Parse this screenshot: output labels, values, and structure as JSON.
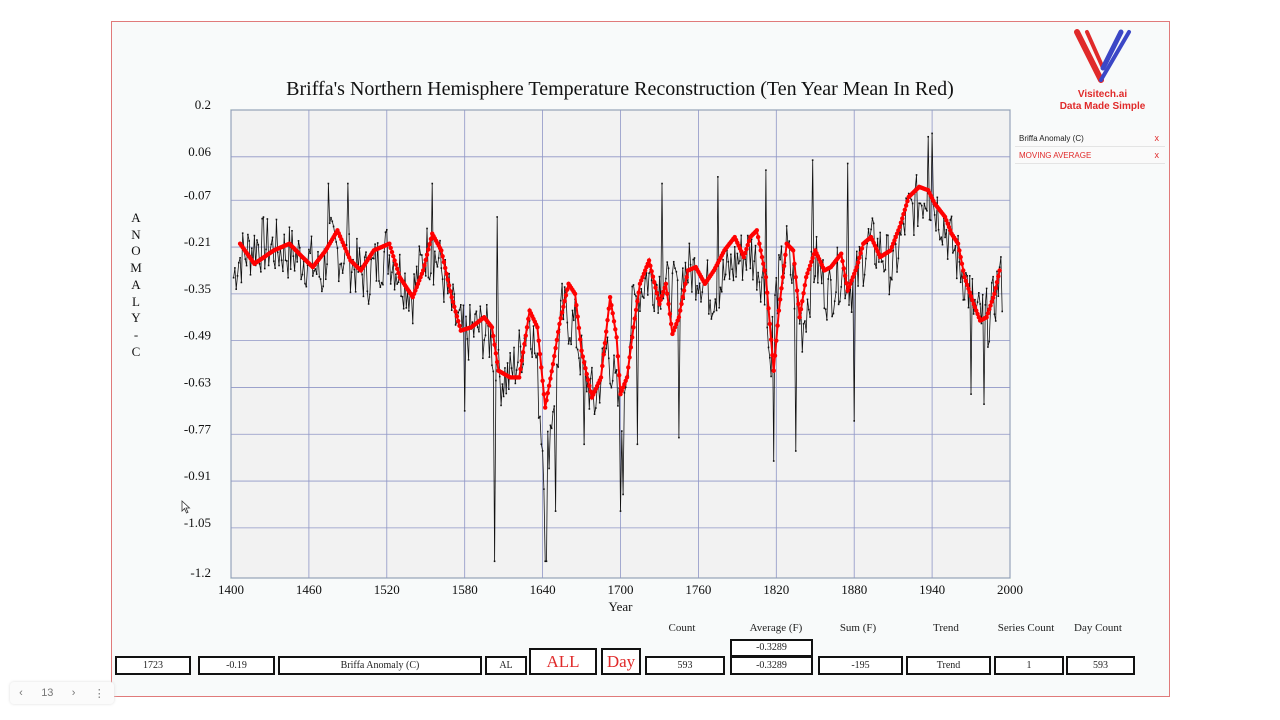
{
  "chart_data": {
    "type": "line",
    "title": "Briffa's Northern Hemisphere Temperature Reconstruction (Ten Year Mean In Red)",
    "xlabel": "Year",
    "ylabel": "ANOMALY - C",
    "xlim": [
      1400,
      2000
    ],
    "ylim": [
      -1.2,
      0.2
    ],
    "x_ticks": [
      "1400",
      "1460",
      "1520",
      "1580",
      "1640",
      "1700",
      "1760",
      "1820",
      "1880",
      "1940",
      "2000"
    ],
    "y_ticks": [
      "0.2",
      "0.06",
      "-0.07",
      "-0.21",
      "-0.35",
      "-0.49",
      "-0.63",
      "-0.77",
      "-0.91",
      "-1.05",
      "-1.2"
    ],
    "grid": true,
    "legend_position": "right",
    "series": [
      {
        "name": "Briffa Anomaly (C)",
        "color": "#111111",
        "anchors": [
          [
            1402,
            -0.3
          ],
          [
            1405,
            -0.25
          ],
          [
            1420,
            -0.2
          ],
          [
            1440,
            -0.22
          ],
          [
            1460,
            -0.25
          ],
          [
            1470,
            -0.3
          ],
          [
            1475,
            -0.2
          ],
          [
            1490,
            -0.25
          ],
          [
            1505,
            -0.3
          ],
          [
            1520,
            -0.22
          ],
          [
            1540,
            -0.35
          ],
          [
            1550,
            -0.22
          ],
          [
            1560,
            -0.25
          ],
          [
            1565,
            -0.32
          ],
          [
            1572,
            -0.42
          ],
          [
            1580,
            -0.48
          ],
          [
            1590,
            -0.45
          ],
          [
            1600,
            -0.48
          ],
          [
            1605,
            -0.6
          ],
          [
            1615,
            -0.6
          ],
          [
            1625,
            -0.5
          ],
          [
            1630,
            -0.4
          ],
          [
            1635,
            -0.55
          ],
          [
            1642,
            -0.9
          ],
          [
            1650,
            -0.6
          ],
          [
            1655,
            -0.4
          ],
          [
            1665,
            -0.45
          ],
          [
            1670,
            -0.55
          ],
          [
            1680,
            -0.68
          ],
          [
            1690,
            -0.5
          ],
          [
            1700,
            -0.72
          ],
          [
            1710,
            -0.38
          ],
          [
            1720,
            -0.3
          ],
          [
            1730,
            -0.32
          ],
          [
            1740,
            -0.35
          ],
          [
            1750,
            -0.28
          ],
          [
            1760,
            -0.28
          ],
          [
            1770,
            -0.35
          ],
          [
            1780,
            -0.3
          ],
          [
            1790,
            -0.25
          ],
          [
            1800,
            -0.22
          ],
          [
            1810,
            -0.3
          ],
          [
            1815,
            -0.55
          ],
          [
            1820,
            -0.35
          ],
          [
            1828,
            -0.22
          ],
          [
            1840,
            -0.45
          ],
          [
            1850,
            -0.25
          ],
          [
            1860,
            -0.35
          ],
          [
            1870,
            -0.28
          ],
          [
            1880,
            -0.33
          ],
          [
            1890,
            -0.2
          ],
          [
            1900,
            -0.22
          ],
          [
            1910,
            -0.28
          ],
          [
            1920,
            -0.12
          ],
          [
            1935,
            -0.05
          ],
          [
            1945,
            -0.1
          ],
          [
            1955,
            -0.2
          ],
          [
            1965,
            -0.3
          ],
          [
            1975,
            -0.42
          ],
          [
            1985,
            -0.42
          ],
          [
            1992,
            -0.3
          ],
          [
            1994,
            -0.33
          ]
        ],
        "noise_amplitude": 0.09,
        "dips": [
          [
            1580,
            -0.7
          ],
          [
            1603,
            -1.15
          ],
          [
            1642,
            -1.15
          ],
          [
            1643,
            -1.15
          ],
          [
            1650,
            -1.0
          ],
          [
            1672,
            -0.8
          ],
          [
            1700,
            -1.0
          ],
          [
            1702,
            -0.95
          ],
          [
            1713,
            -0.8
          ],
          [
            1745,
            -0.78
          ],
          [
            1818,
            -0.85
          ],
          [
            1835,
            -0.82
          ],
          [
            1880,
            -0.73
          ],
          [
            1970,
            -0.65
          ],
          [
            1980,
            -0.68
          ]
        ],
        "peaks": [
          [
            1475,
            -0.02
          ],
          [
            1490,
            -0.02
          ],
          [
            1555,
            -0.02
          ],
          [
            1605,
            -0.12
          ],
          [
            1732,
            -0.02
          ],
          [
            1775,
            0.0
          ],
          [
            1812,
            0.02
          ],
          [
            1848,
            0.05
          ],
          [
            1875,
            0.04
          ],
          [
            1937,
            0.12
          ],
          [
            1940,
            0.13
          ]
        ]
      },
      {
        "name": "MOVING AVERAGE",
        "color": "#ff0000",
        "anchors": [
          [
            1407,
            -0.2
          ],
          [
            1418,
            -0.26
          ],
          [
            1433,
            -0.22
          ],
          [
            1445,
            -0.2
          ],
          [
            1455,
            -0.24
          ],
          [
            1463,
            -0.27
          ],
          [
            1473,
            -0.22
          ],
          [
            1482,
            -0.16
          ],
          [
            1492,
            -0.25
          ],
          [
            1500,
            -0.28
          ],
          [
            1510,
            -0.22
          ],
          [
            1522,
            -0.2
          ],
          [
            1530,
            -0.3
          ],
          [
            1540,
            -0.36
          ],
          [
            1548,
            -0.28
          ],
          [
            1555,
            -0.17
          ],
          [
            1562,
            -0.22
          ],
          [
            1570,
            -0.36
          ],
          [
            1577,
            -0.46
          ],
          [
            1585,
            -0.45
          ],
          [
            1595,
            -0.42
          ],
          [
            1601,
            -0.45
          ],
          [
            1606,
            -0.58
          ],
          [
            1615,
            -0.6
          ],
          [
            1622,
            -0.6
          ],
          [
            1630,
            -0.4
          ],
          [
            1636,
            -0.45
          ],
          [
            1642,
            -0.69
          ],
          [
            1648,
            -0.56
          ],
          [
            1653,
            -0.44
          ],
          [
            1660,
            -0.32
          ],
          [
            1665,
            -0.35
          ],
          [
            1670,
            -0.52
          ],
          [
            1678,
            -0.66
          ],
          [
            1685,
            -0.6
          ],
          [
            1692,
            -0.36
          ],
          [
            1697,
            -0.48
          ],
          [
            1700,
            -0.65
          ],
          [
            1705,
            -0.6
          ],
          [
            1710,
            -0.45
          ],
          [
            1715,
            -0.32
          ],
          [
            1722,
            -0.25
          ],
          [
            1730,
            -0.38
          ],
          [
            1735,
            -0.32
          ],
          [
            1740,
            -0.47
          ],
          [
            1745,
            -0.42
          ],
          [
            1752,
            -0.28
          ],
          [
            1758,
            -0.27
          ],
          [
            1765,
            -0.32
          ],
          [
            1772,
            -0.28
          ],
          [
            1780,
            -0.22
          ],
          [
            1788,
            -0.18
          ],
          [
            1795,
            -0.24
          ],
          [
            1800,
            -0.18
          ],
          [
            1805,
            -0.16
          ],
          [
            1812,
            -0.3
          ],
          [
            1818,
            -0.58
          ],
          [
            1822,
            -0.4
          ],
          [
            1828,
            -0.2
          ],
          [
            1833,
            -0.22
          ],
          [
            1838,
            -0.42
          ],
          [
            1843,
            -0.3
          ],
          [
            1850,
            -0.22
          ],
          [
            1857,
            -0.28
          ],
          [
            1862,
            -0.27
          ],
          [
            1870,
            -0.23
          ],
          [
            1875,
            -0.34
          ],
          [
            1882,
            -0.27
          ],
          [
            1887,
            -0.2
          ],
          [
            1893,
            -0.18
          ],
          [
            1900,
            -0.24
          ],
          [
            1908,
            -0.22
          ],
          [
            1915,
            -0.15
          ],
          [
            1922,
            -0.06
          ],
          [
            1930,
            -0.03
          ],
          [
            1937,
            -0.04
          ],
          [
            1942,
            -0.08
          ],
          [
            1950,
            -0.12
          ],
          [
            1955,
            -0.17
          ],
          [
            1960,
            -0.2
          ],
          [
            1965,
            -0.3
          ],
          [
            1972,
            -0.38
          ],
          [
            1977,
            -0.43
          ],
          [
            1982,
            -0.42
          ],
          [
            1988,
            -0.35
          ],
          [
            1992,
            -0.28
          ]
        ]
      }
    ]
  },
  "logo": {
    "text_line1": "Visitech.ai",
    "text_line2": "Data Made Simple"
  },
  "legend": {
    "items": [
      {
        "label": "Briffa Anomaly (C)",
        "remove": "x"
      },
      {
        "label": "MOVING AVERAGE",
        "remove": "x"
      }
    ]
  },
  "stats": {
    "headers": {
      "count": "Count",
      "average": "Average (F)",
      "sum": "Sum (F)",
      "trend": "Trend",
      "series_count": "Series Count",
      "day_count": "Day Count"
    },
    "cells": {
      "year": "1723",
      "value": "-0.19",
      "series_name": "Briffa Anomaly (C)",
      "al": "AL",
      "all": "ALL",
      "day": "Day",
      "count": "593",
      "average_top": "-0.3289",
      "average": "-0.3289",
      "sum": "-195",
      "trend": "Trend",
      "series_count": "1",
      "day_count": "593"
    }
  },
  "pager": {
    "prev": "‹",
    "page": "13",
    "next": "›",
    "menu": "⋮"
  }
}
